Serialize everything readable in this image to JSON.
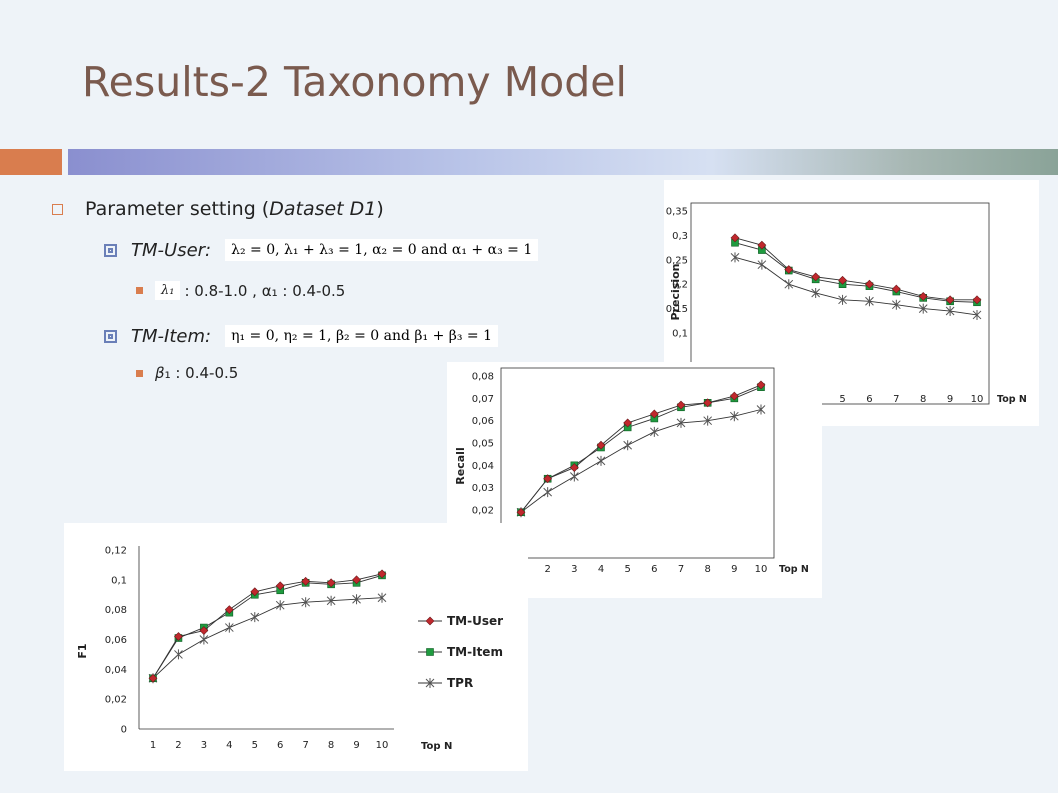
{
  "slide": {
    "title": "Results-2 Taxonomy Model"
  },
  "bullets": {
    "parameter_setting": "Parameter setting (",
    "dataset": "Dataset D1",
    "close_paren": ")",
    "tm_user_label": "TM-User:",
    "tm_user_formula": "λ₂ = 0,  λ₁ + λ₃ = 1,  α₂ = 0  and  α₁ + α₃ = 1",
    "tm_user_sub_symbol": "λ₁",
    "tm_user_sub_text": " : 0.8-1.0 , α₁ : 0.4-0.5",
    "tm_item_label": "TM-Item:",
    "tm_item_formula": "η₁ = 0,  η₂ = 1,  β₂ = 0  and  β₁ + β₃ = 1",
    "tm_item_sub_symbol": "β",
    "tm_item_sub_text": "₁ : 0.4-0.5"
  },
  "chart_data": [
    {
      "type": "line",
      "ylabel": "Precision",
      "xlabel": "Top N",
      "ylim": [
        0.1,
        0.35
      ],
      "yticks": [
        "0,1",
        "0,15",
        "0,2",
        "0,25",
        "0,3",
        "0,35"
      ],
      "x": [
        1,
        2,
        3,
        4,
        5,
        6,
        7,
        8,
        9,
        10
      ],
      "visible_xticks": [
        "5",
        "6",
        "7",
        "8",
        "9",
        "10"
      ],
      "series": [
        {
          "name": "TM-User",
          "values": [
            0.295,
            0.28,
            0.23,
            0.215,
            0.208,
            0.2,
            0.19,
            0.175,
            0.168,
            0.168
          ],
          "color": "#c0282d"
        },
        {
          "name": "TM-Item",
          "values": [
            0.285,
            0.27,
            0.228,
            0.21,
            0.2,
            0.196,
            0.185,
            0.172,
            0.165,
            0.163
          ],
          "color": "#1f9b3f"
        },
        {
          "name": "TPR",
          "values": [
            0.255,
            0.24,
            0.2,
            0.182,
            0.168,
            0.165,
            0.158,
            0.15,
            0.145,
            0.137
          ],
          "color": "#555555"
        }
      ]
    },
    {
      "type": "line",
      "ylabel": "Recall",
      "xlabel": "Top N",
      "ylim": [
        0.02,
        0.08
      ],
      "yticks": [
        "0,02",
        "0,03",
        "0,04",
        "0,05",
        "0,06",
        "0,07",
        "0,08"
      ],
      "x": [
        1,
        2,
        3,
        4,
        5,
        6,
        7,
        8,
        9,
        10
      ],
      "visible_xticks": [
        "2",
        "3",
        "4",
        "5",
        "6",
        "7",
        "8",
        "9",
        "10"
      ],
      "series": [
        {
          "name": "TM-User",
          "values": [
            0.019,
            0.034,
            0.039,
            0.049,
            0.059,
            0.063,
            0.067,
            0.068,
            0.071,
            0.076
          ],
          "color": "#c0282d"
        },
        {
          "name": "TM-Item",
          "values": [
            0.019,
            0.034,
            0.04,
            0.048,
            0.057,
            0.061,
            0.066,
            0.068,
            0.07,
            0.075
          ],
          "color": "#1f9b3f"
        },
        {
          "name": "TPR",
          "values": [
            0.019,
            0.028,
            0.035,
            0.042,
            0.049,
            0.055,
            0.059,
            0.06,
            0.062,
            0.065
          ],
          "color": "#555555"
        }
      ]
    },
    {
      "type": "line",
      "ylabel": "F1",
      "xlabel": "Top N",
      "ylim": [
        0,
        0.12
      ],
      "yticks": [
        "0",
        "0,02",
        "0,04",
        "0,06",
        "0,08",
        "0,1",
        "0,12"
      ],
      "x": [
        1,
        2,
        3,
        4,
        5,
        6,
        7,
        8,
        9,
        10
      ],
      "xticks": [
        "1",
        "2",
        "3",
        "4",
        "5",
        "6",
        "7",
        "8",
        "9",
        "10"
      ],
      "legend": "right",
      "series": [
        {
          "name": "TM-User",
          "values": [
            0.034,
            0.062,
            0.066,
            0.08,
            0.092,
            0.096,
            0.099,
            0.098,
            0.1,
            0.104
          ],
          "color": "#c0282d"
        },
        {
          "name": "TM-Item",
          "values": [
            0.034,
            0.061,
            0.068,
            0.078,
            0.09,
            0.093,
            0.098,
            0.097,
            0.098,
            0.103
          ],
          "color": "#1f9b3f"
        },
        {
          "name": "TPR",
          "values": [
            0.034,
            0.05,
            0.06,
            0.068,
            0.075,
            0.083,
            0.085,
            0.086,
            0.087,
            0.088
          ],
          "color": "#555555"
        }
      ]
    }
  ]
}
